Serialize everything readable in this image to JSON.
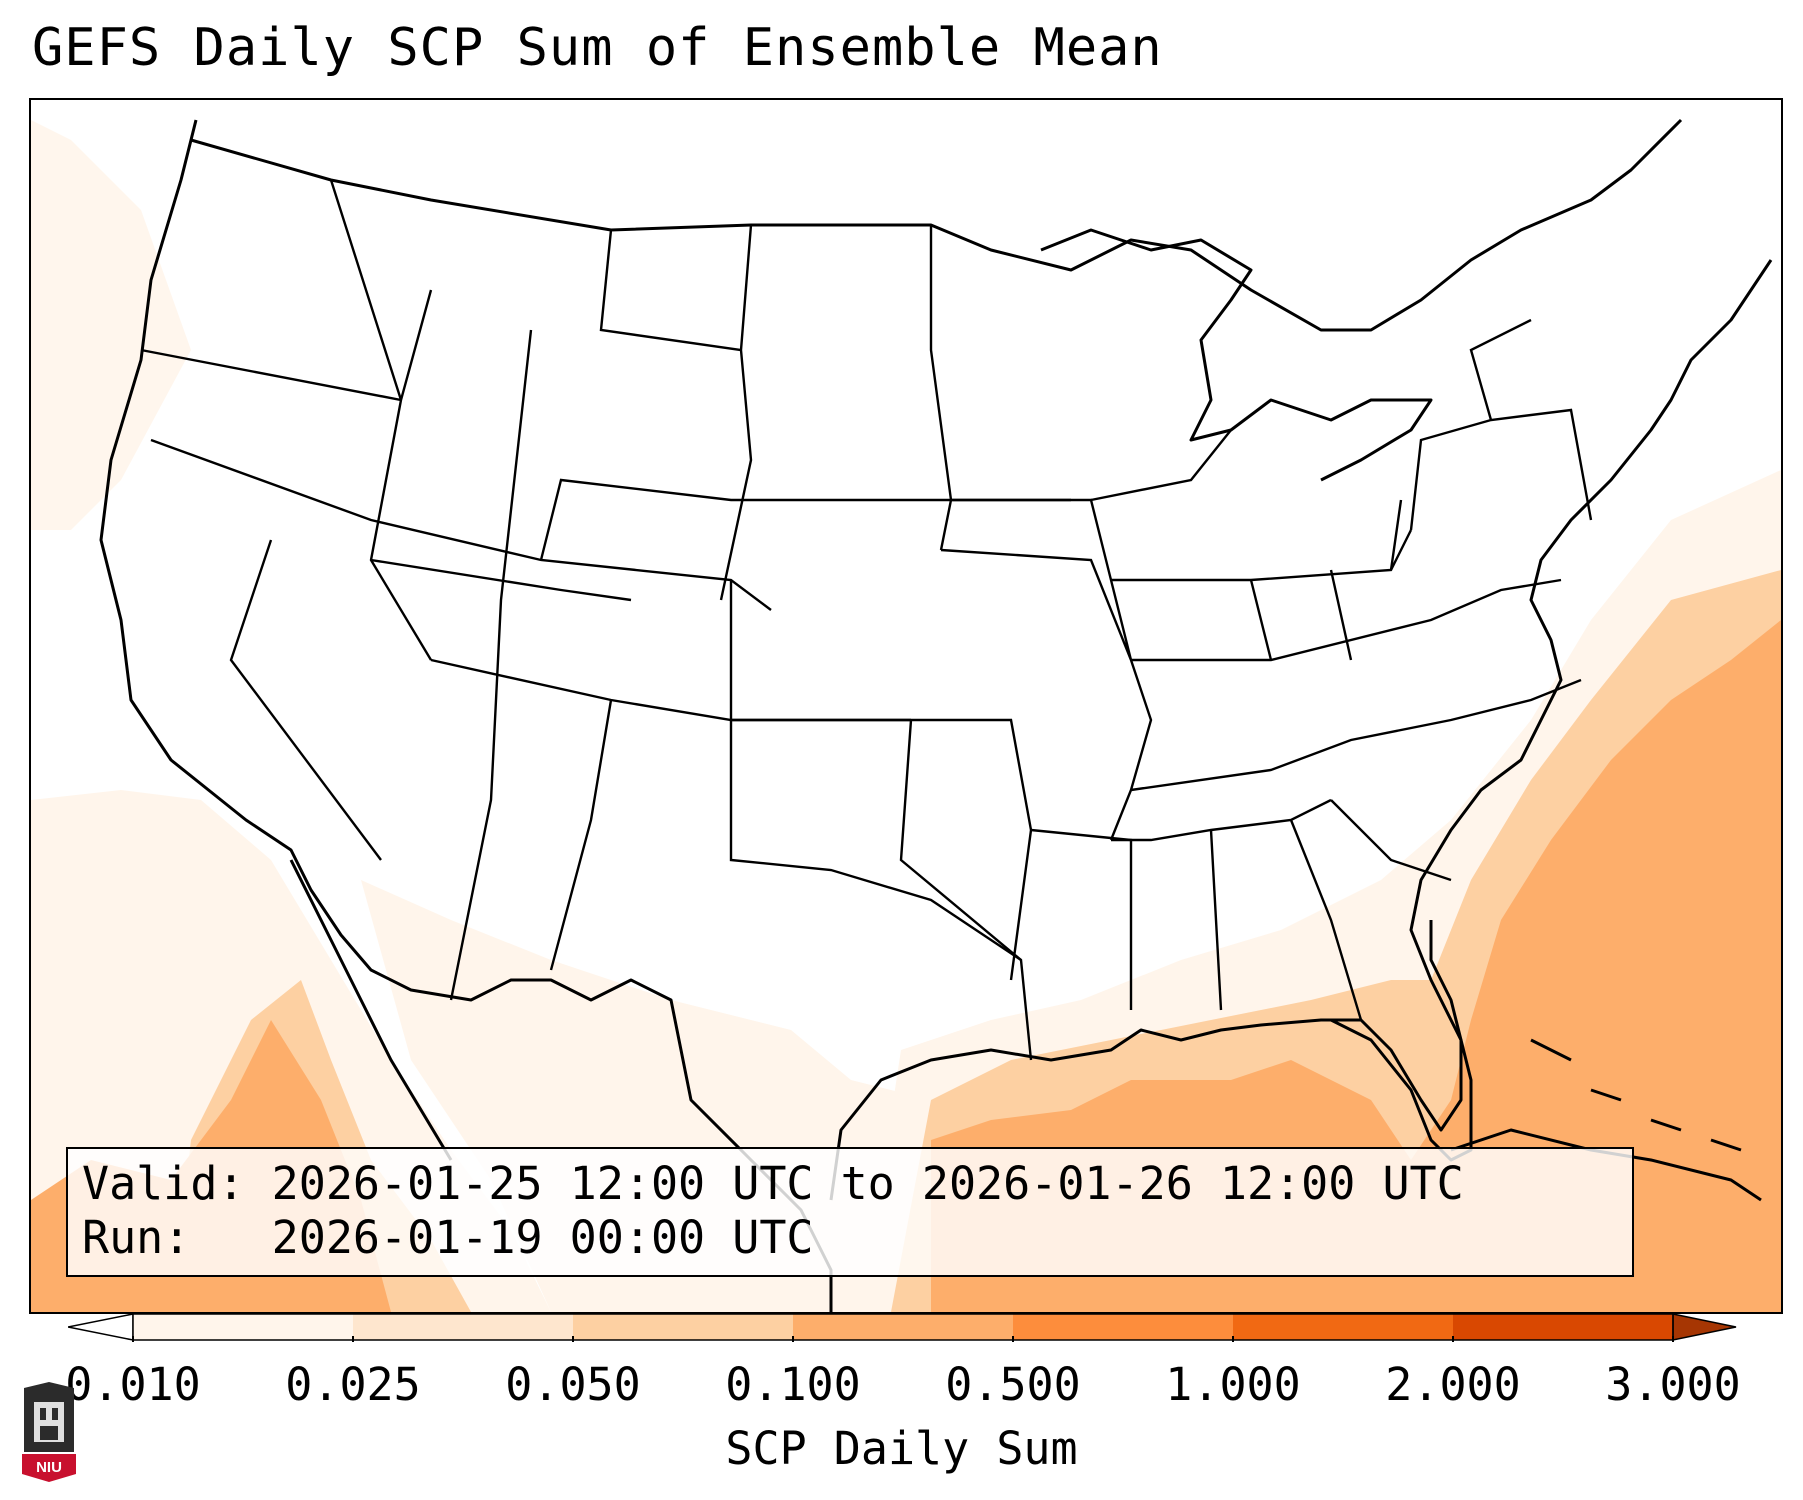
{
  "title": "GEFS Daily SCP Sum of Ensemble Mean",
  "info": {
    "valid_label": "Valid:",
    "valid_value": "2026-01-25 12:00 UTC to 2026-01-26 12:00 UTC",
    "run_label": "Run:",
    "run_value": "2026-01-19 00:00 UTC"
  },
  "colorbar": {
    "label": "SCP Daily Sum",
    "ticks": [
      "0.010",
      "0.025",
      "0.050",
      "0.100",
      "0.500",
      "1.000",
      "2.000",
      "3.000"
    ],
    "colors": [
      "#fff5eb",
      "#fee6ce",
      "#fdd0a2",
      "#fdae6b",
      "#fd8d3c",
      "#f16913",
      "#d94801",
      "#a63603"
    ],
    "extend": "both"
  },
  "map": {
    "region": "Contiguous United States",
    "land_fill": "#ffffff",
    "border_color": "#000000"
  },
  "logo": {
    "text": "NIU",
    "icon": "niu-castle-logo-icon"
  }
}
